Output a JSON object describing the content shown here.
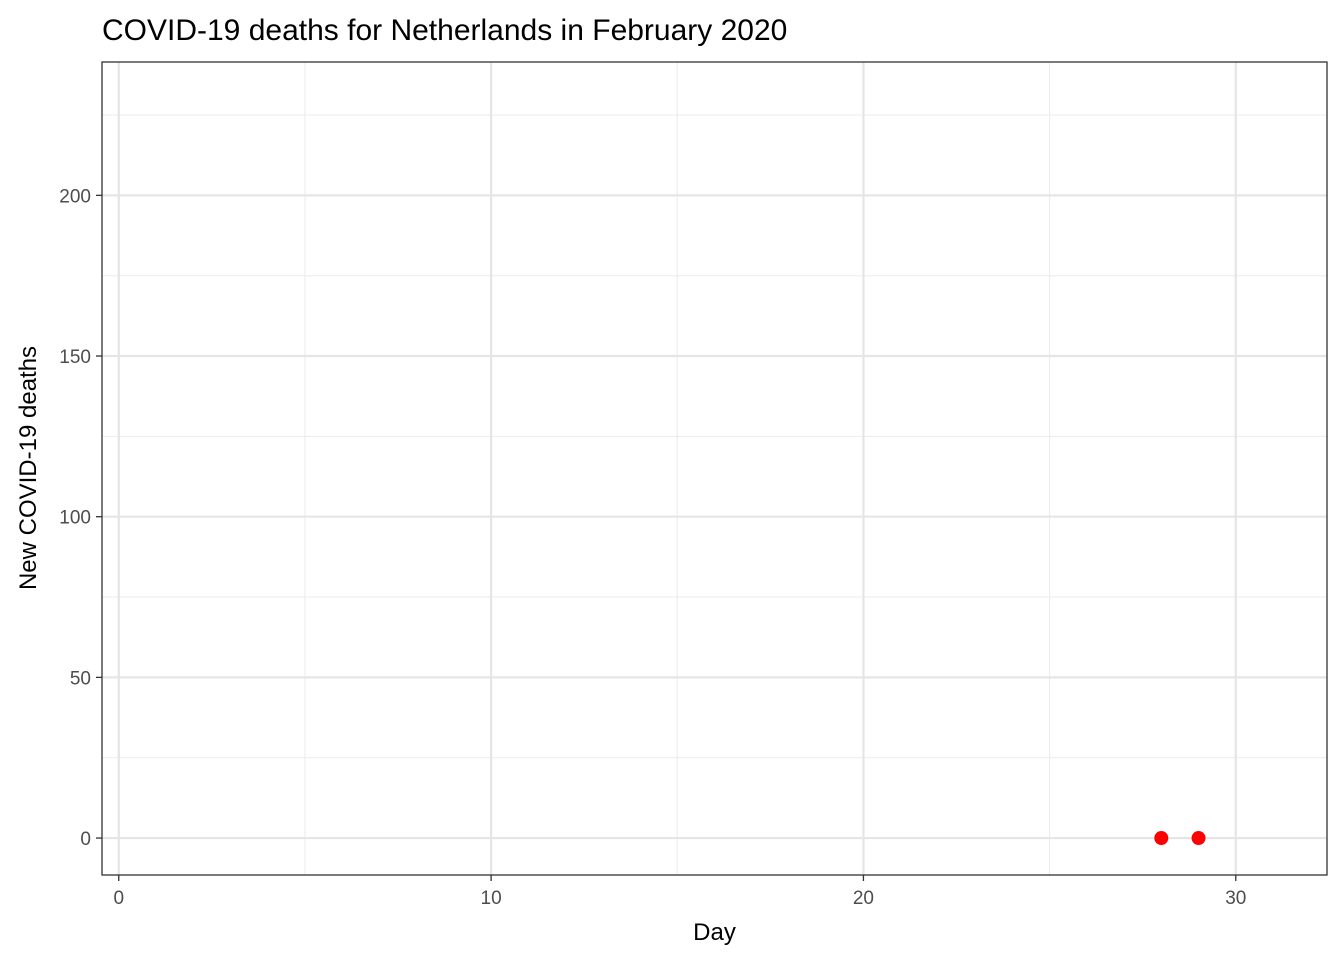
{
  "chart_data": {
    "type": "scatter",
    "title": "COVID-19 deaths for Netherlands in February 2020",
    "xlabel": "Day",
    "ylabel": "New COVID-19 deaths",
    "xlim": [
      -0.45,
      32.45
    ],
    "ylim": [
      -11.5,
      241.5
    ],
    "x_ticks": [
      0,
      10,
      20,
      30
    ],
    "x_minor_ticks": [
      5,
      15,
      25
    ],
    "y_ticks": [
      0,
      50,
      100,
      150,
      200
    ],
    "y_minor_ticks": [
      25,
      75,
      125,
      175,
      225
    ],
    "grid": true,
    "legend": "none",
    "point_color": "#ff0000",
    "points": [
      {
        "x": 28,
        "y": 0
      },
      {
        "x": 29,
        "y": 0
      }
    ]
  }
}
